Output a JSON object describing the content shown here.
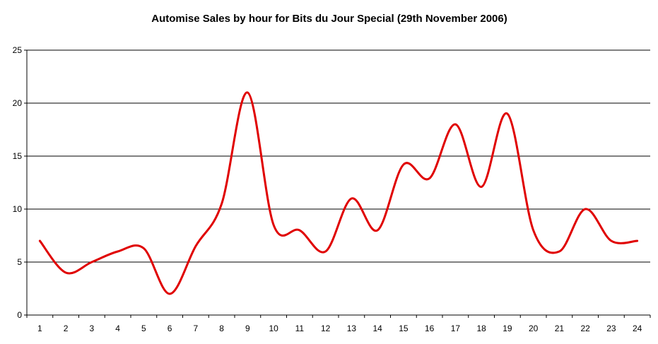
{
  "chart_data": {
    "type": "line",
    "title": "Automise Sales by hour for Bits du Jour Special (29th November 2006)",
    "xlabel": "",
    "ylabel": "",
    "categories": [
      "1",
      "2",
      "3",
      "4",
      "5",
      "6",
      "7",
      "8",
      "9",
      "10",
      "11",
      "12",
      "13",
      "14",
      "15",
      "16",
      "17",
      "18",
      "19",
      "20",
      "21",
      "22",
      "23",
      "24"
    ],
    "series": [
      {
        "values": [
          7,
          4,
          5,
          6,
          6.3,
          2,
          6.5,
          10.5,
          21,
          8.5,
          8,
          6,
          11,
          8,
          14.2,
          12.9,
          18,
          12.1,
          19,
          8,
          6,
          10,
          7,
          7
        ],
        "color": "#e00000"
      }
    ],
    "ylim": [
      0,
      25
    ],
    "yticks": [
      "0",
      "5",
      "10",
      "15",
      "20",
      "25"
    ],
    "grid": "horizontal",
    "legend": "none"
  }
}
